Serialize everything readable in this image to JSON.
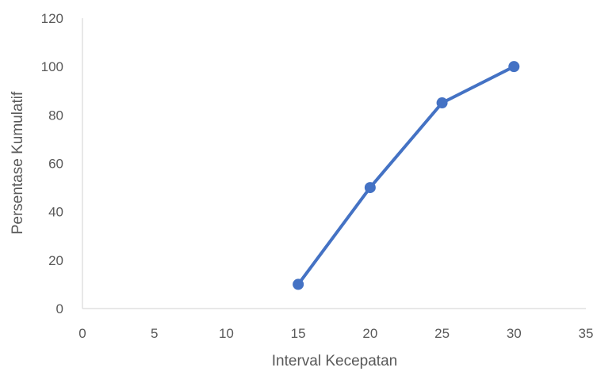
{
  "chart_data": {
    "type": "line",
    "title": "",
    "xlabel": "Interval Kecepatan",
    "ylabel": "Persentase Kumulatif",
    "xlim": [
      0,
      35
    ],
    "ylim": [
      0,
      120
    ],
    "x_ticks": [
      0,
      5,
      10,
      15,
      20,
      25,
      30,
      35
    ],
    "y_ticks": [
      0,
      20,
      40,
      60,
      80,
      100,
      120
    ],
    "grid": false,
    "legend": "none",
    "series": [
      {
        "color": "#4472c4",
        "x": [
          15,
          20,
          25,
          30
        ],
        "y": [
          10,
          50,
          85,
          100
        ]
      }
    ]
  },
  "colors": {
    "axis_line": "#d9d9d9",
    "text": "#595959"
  }
}
